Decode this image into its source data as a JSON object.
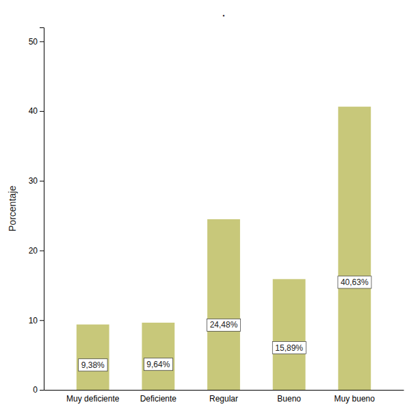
{
  "chart_data": {
    "type": "bar",
    "title": ".",
    "ylabel": "Porcentaje",
    "categories": [
      "Muy deficiente",
      "Deficiente",
      "Regular",
      "Bueno",
      "Muy bueno"
    ],
    "values": [
      9.38,
      9.64,
      24.48,
      15.89,
      40.63
    ],
    "value_labels": [
      "9,38%",
      "9,64%",
      "24,48%",
      "15,89%",
      "40,63%"
    ],
    "data_labels": true,
    "color": "#c8c87a",
    "ylim": [
      0,
      52
    ],
    "yticks": [
      0,
      10,
      20,
      30,
      40,
      50
    ],
    "grid": false
  }
}
